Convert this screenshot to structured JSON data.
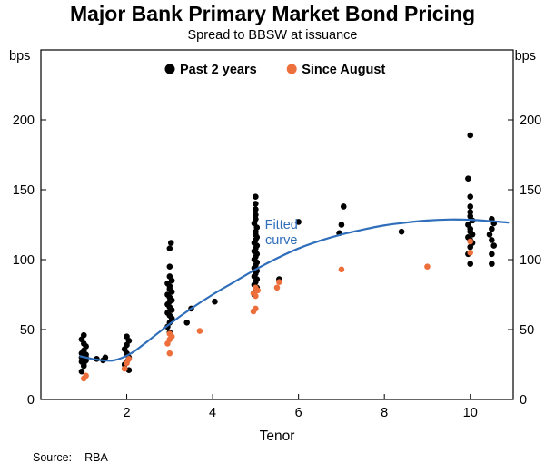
{
  "page": {
    "title": "Major Bank Primary Market Bond Pricing",
    "subtitle": "Spread to BBSW at issuance",
    "source_label": "Source:",
    "source_value": "RBA"
  },
  "chart_data": {
    "type": "scatter",
    "title": "Major Bank Primary Market Bond Pricing",
    "subtitle": "Spread to BBSW at issuance",
    "xlabel": "Tenor",
    "ylabel_left": "bps",
    "ylabel_right": "bps",
    "xlim": [
      0,
      11
    ],
    "ylim": [
      0,
      250
    ],
    "x_ticks": [
      2,
      4,
      6,
      8,
      10
    ],
    "y_ticks": [
      0,
      50,
      100,
      150,
      200
    ],
    "grid": false,
    "legend_position": "top-center-inside",
    "legend": [
      {
        "label": "Past 2 years",
        "color": "#000000"
      },
      {
        "label": "Since August",
        "color": "#ED6F3C"
      }
    ],
    "annotation": {
      "lines": [
        "Fitted",
        "curve"
      ],
      "x": 5.6,
      "y": 122,
      "color": "#2F6EBA"
    },
    "series": [
      {
        "name": "Past 2 years",
        "type": "scatter",
        "color": "#000000",
        "points": [
          [
            0.95,
            20
          ],
          [
            1.0,
            24
          ],
          [
            1.0,
            26
          ],
          [
            0.95,
            27
          ],
          [
            1.05,
            28
          ],
          [
            1.0,
            29
          ],
          [
            0.95,
            30
          ],
          [
            1.05,
            30
          ],
          [
            1.0,
            31
          ],
          [
            1.05,
            32
          ],
          [
            0.95,
            33
          ],
          [
            1.0,
            35
          ],
          [
            1.05,
            38
          ],
          [
            1.0,
            40
          ],
          [
            0.95,
            43
          ],
          [
            1.0,
            46
          ],
          [
            1.3,
            29
          ],
          [
            1.45,
            28
          ],
          [
            1.5,
            30
          ],
          [
            2.05,
            21
          ],
          [
            1.95,
            25
          ],
          [
            2.0,
            27
          ],
          [
            2.05,
            30
          ],
          [
            2.0,
            33
          ],
          [
            1.95,
            36
          ],
          [
            2.0,
            39
          ],
          [
            2.05,
            42
          ],
          [
            2.0,
            45
          ],
          [
            3.0,
            48
          ],
          [
            2.95,
            52
          ],
          [
            3.0,
            55
          ],
          [
            3.05,
            58
          ],
          [
            3.0,
            60
          ],
          [
            2.95,
            62
          ],
          [
            3.05,
            64
          ],
          [
            3.0,
            66
          ],
          [
            2.95,
            68
          ],
          [
            3.0,
            70
          ],
          [
            3.05,
            71
          ],
          [
            3.0,
            73
          ],
          [
            2.95,
            75
          ],
          [
            3.05,
            77
          ],
          [
            3.0,
            79
          ],
          [
            3.0,
            81
          ],
          [
            2.95,
            83
          ],
          [
            3.05,
            85
          ],
          [
            3.0,
            88
          ],
          [
            3.0,
            95
          ],
          [
            3.0,
            108
          ],
          [
            3.03,
            112
          ],
          [
            3.4,
            55
          ],
          [
            3.5,
            65
          ],
          [
            4.05,
            70
          ],
          [
            4.97,
            75
          ],
          [
            5.0,
            78
          ],
          [
            5.03,
            80
          ],
          [
            4.97,
            82
          ],
          [
            5.0,
            84
          ],
          [
            5.03,
            86
          ],
          [
            4.97,
            88
          ],
          [
            5.0,
            90
          ],
          [
            5.03,
            92
          ],
          [
            4.97,
            94
          ],
          [
            5.0,
            96
          ],
          [
            5.03,
            98
          ],
          [
            4.97,
            100
          ],
          [
            5.0,
            102
          ],
          [
            5.03,
            104
          ],
          [
            4.97,
            106
          ],
          [
            5.0,
            108
          ],
          [
            5.03,
            110
          ],
          [
            4.97,
            112
          ],
          [
            5.0,
            114
          ],
          [
            5.03,
            116
          ],
          [
            5.0,
            118
          ],
          [
            5.0,
            120
          ],
          [
            5.03,
            123
          ],
          [
            4.97,
            126
          ],
          [
            5.0,
            129
          ],
          [
            5.0,
            132
          ],
          [
            5.0,
            136
          ],
          [
            5.0,
            140
          ],
          [
            5.0,
            145
          ],
          [
            5.55,
            86
          ],
          [
            6.0,
            127
          ],
          [
            6.95,
            119
          ],
          [
            7.0,
            125
          ],
          [
            7.05,
            138
          ],
          [
            8.4,
            120
          ],
          [
            10.0,
            97
          ],
          [
            9.95,
            104
          ],
          [
            10.0,
            109
          ],
          [
            10.05,
            112
          ],
          [
            10.0,
            114
          ],
          [
            9.95,
            116
          ],
          [
            10.05,
            118
          ],
          [
            10.0,
            120
          ],
          [
            10.0,
            122
          ],
          [
            9.95,
            125
          ],
          [
            10.05,
            128
          ],
          [
            10.0,
            131
          ],
          [
            10.0,
            134
          ],
          [
            10.0,
            138
          ],
          [
            10.0,
            145
          ],
          [
            9.95,
            158
          ],
          [
            10.0,
            189
          ],
          [
            10.5,
            97
          ],
          [
            10.5,
            104
          ],
          [
            10.55,
            110
          ],
          [
            10.5,
            114
          ],
          [
            10.45,
            118
          ],
          [
            10.5,
            122
          ],
          [
            10.55,
            126
          ],
          [
            10.5,
            129
          ]
        ]
      },
      {
        "name": "Since August",
        "type": "scatter",
        "color": "#ED6F3C",
        "points": [
          [
            1.0,
            15
          ],
          [
            1.05,
            17
          ],
          [
            1.95,
            22
          ],
          [
            2.0,
            26
          ],
          [
            2.05,
            29
          ],
          [
            3.0,
            33
          ],
          [
            2.95,
            40
          ],
          [
            3.0,
            43
          ],
          [
            3.05,
            45
          ],
          [
            3.0,
            47
          ],
          [
            3.7,
            49
          ],
          [
            4.95,
            63
          ],
          [
            5.0,
            65
          ],
          [
            5.0,
            74
          ],
          [
            4.95,
            76
          ],
          [
            5.05,
            78
          ],
          [
            5.0,
            80
          ],
          [
            5.5,
            80
          ],
          [
            5.55,
            84
          ],
          [
            7.0,
            93
          ],
          [
            9.0,
            95
          ],
          [
            10.0,
            105
          ],
          [
            10.0,
            113
          ]
        ]
      },
      {
        "name": "Fitted curve",
        "type": "line",
        "color": "#2F6EBA",
        "points": [
          [
            0.9,
            31
          ],
          [
            1.3,
            28.5
          ],
          [
            1.7,
            28
          ],
          [
            2.1,
            33
          ],
          [
            2.5,
            42
          ],
          [
            3.0,
            54
          ],
          [
            3.5,
            65
          ],
          [
            4.0,
            75
          ],
          [
            4.5,
            84
          ],
          [
            5.0,
            93
          ],
          [
            5.5,
            101
          ],
          [
            6.0,
            108
          ],
          [
            6.5,
            113.5
          ],
          [
            7.0,
            118
          ],
          [
            7.5,
            121.5
          ],
          [
            8.0,
            124.5
          ],
          [
            8.5,
            126.5
          ],
          [
            9.0,
            128
          ],
          [
            9.5,
            128.7
          ],
          [
            10.0,
            128.5
          ],
          [
            10.5,
            127.5
          ],
          [
            10.9,
            126.5
          ]
        ]
      }
    ]
  }
}
